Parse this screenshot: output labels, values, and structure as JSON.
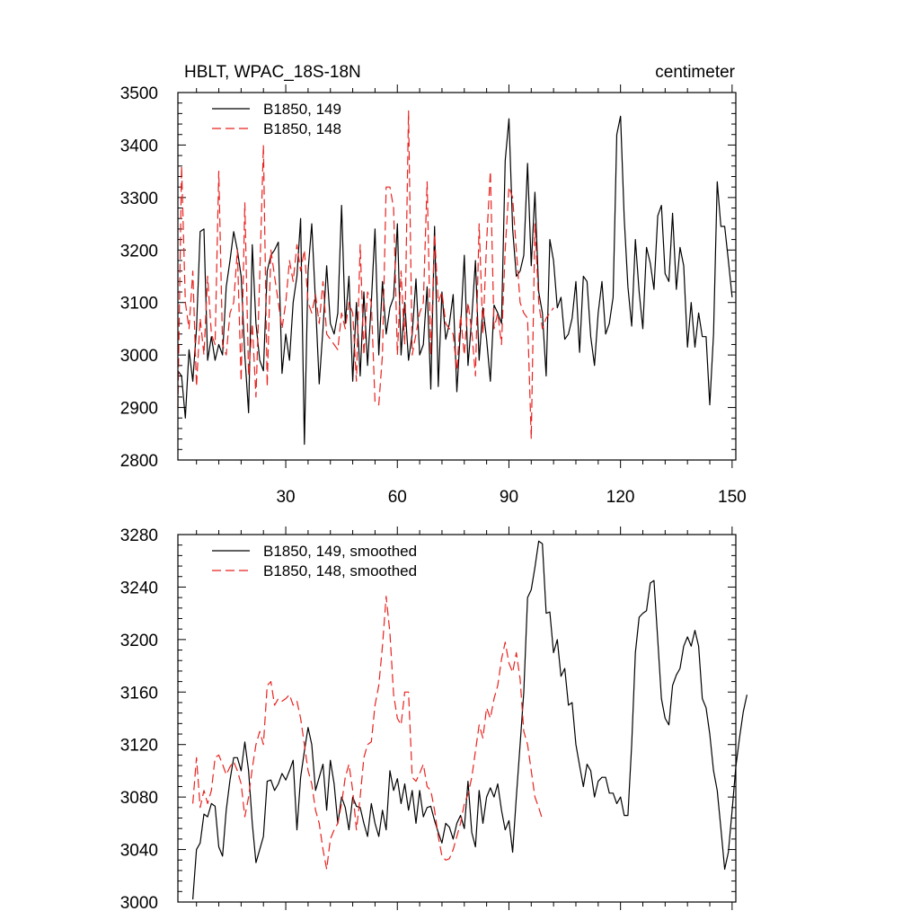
{
  "chart_data": [
    {
      "type": "line",
      "title": "HBLT, WPAC_18S-18N",
      "units": "centimeter",
      "xlabel": "",
      "ylabel": "",
      "xlim": [
        1,
        151
      ],
      "ylim": [
        2800,
        3500
      ],
      "xticks": [
        30,
        60,
        90,
        120,
        150
      ],
      "yticks": [
        2800,
        2900,
        3000,
        3100,
        3200,
        3300,
        3400,
        3500
      ],
      "legend_position": "top-left",
      "series": [
        {
          "name": "B1850, 149",
          "color": "#000000",
          "dash": "solid",
          "x_start": 1,
          "values": [
            2970,
            2960,
            2880,
            3010,
            2950,
            3050,
            3235,
            3240,
            2990,
            3035,
            2990,
            3020,
            3000,
            3130,
            3180,
            3235,
            3200,
            3150,
            3000,
            2890,
            3210,
            3060,
            2990,
            2970,
            3160,
            3190,
            3200,
            3215,
            2965,
            3040,
            2990,
            3100,
            3150,
            3260,
            2830,
            3160,
            3250,
            3100,
            2945,
            3050,
            3170,
            3060,
            3040,
            3080,
            3285,
            3060,
            3150,
            2950,
            3100,
            2960,
            3120,
            2980,
            3100,
            3240,
            3000,
            3140,
            3040,
            3090,
            3110,
            3250,
            3000,
            3100,
            2990,
            3040,
            3145,
            3000,
            3020,
            3130,
            2935,
            3245,
            2940,
            3120,
            3030,
            3060,
            3115,
            2930,
            3050,
            3190,
            2980,
            3070,
            3180,
            2990,
            3090,
            3030,
            2950,
            3095,
            3080,
            3060,
            3370,
            3450,
            3240,
            3150,
            3160,
            3190,
            3365,
            3170,
            3310,
            3120,
            3080,
            2960,
            3220,
            3180,
            3090,
            3110,
            3030,
            3040,
            3070,
            3140,
            3005,
            3150,
            3140,
            3035,
            2980,
            3080,
            3140,
            3040,
            3060,
            3110,
            3420,
            3455,
            3260,
            3130,
            3055,
            3220,
            3120,
            3050,
            3205,
            3175,
            3125,
            3265,
            3285,
            3155,
            3140,
            3270,
            3125,
            3205,
            3170,
            3015,
            3100,
            3015,
            3080,
            3035,
            3035,
            2905,
            3040,
            3330,
            3245,
            3245,
            3180,
            3110
          ]
        },
        {
          "name": "B1850, 148",
          "color": "#e8221e",
          "dash": "dashed",
          "x_start": 1,
          "values": [
            2900,
            3360,
            3100,
            3050,
            3160,
            2940,
            3070,
            3000,
            3150,
            3040,
            3020,
            3350,
            3020,
            3000,
            3080,
            3100,
            3200,
            2950,
            3290,
            2960,
            3060,
            2920,
            3150,
            3400,
            2940,
            3200,
            3150,
            3100,
            3050,
            3100,
            3180,
            3140,
            3210,
            3160,
            3200,
            3100,
            3080,
            3115,
            3060,
            3140,
            3040,
            3030,
            3020,
            3010,
            3080,
            3050,
            3100,
            3080,
            2950,
            3210,
            3000,
            3120,
            3100,
            2910,
            2905,
            3000,
            3320,
            3320,
            3280,
            3000,
            3160,
            3020,
            3465,
            3000,
            3040,
            3080,
            3100,
            3330,
            3000,
            3230,
            3100,
            3120,
            3060,
            3050,
            3040,
            2970,
            3075,
            3000,
            3100,
            3045,
            2960,
            3250,
            3040,
            3215,
            3350,
            3050,
            3080,
            3020,
            3200,
            3320,
            3300,
            3200,
            3100,
            3080,
            3070,
            2840,
            3250,
            3100,
            3050,
            3070,
            3080,
            3090
          ]
        }
      ]
    },
    {
      "type": "line",
      "title": "",
      "xlabel": "",
      "ylabel": "",
      "xlim": [
        1,
        151
      ],
      "ylim": [
        3000,
        3280
      ],
      "xticks": [
        30,
        60,
        90,
        120,
        150
      ],
      "yticks": [
        3000,
        3040,
        3080,
        3120,
        3160,
        3200,
        3240,
        3280
      ],
      "legend_position": "top-left",
      "series": [
        {
          "name": "B1850, 149, smoothed",
          "color": "#000000",
          "dash": "solid",
          "x_start": 5,
          "values": [
            3002,
            3040,
            3045,
            3067,
            3065,
            3075,
            3073,
            3042,
            3035,
            3070,
            3093,
            3110,
            3110,
            3100,
            3122,
            3100,
            3060,
            3030,
            3040,
            3050,
            3092,
            3093,
            3085,
            3090,
            3098,
            3093,
            3100,
            3108,
            3055,
            3095,
            3115,
            3133,
            3120,
            3085,
            3095,
            3105,
            3070,
            3108,
            3090,
            3060,
            3080,
            3072,
            3055,
            3080,
            3073,
            3072,
            3060,
            3050,
            3075,
            3060,
            3050,
            3070,
            3055,
            3100,
            3085,
            3094,
            3075,
            3090,
            3070,
            3085,
            3060,
            3085,
            3065,
            3072,
            3073,
            3062,
            3053,
            3045,
            3060,
            3057,
            3048,
            3060,
            3066,
            3056,
            3092,
            3053,
            3042,
            3085,
            3060,
            3080,
            3087,
            3080,
            3090,
            3070,
            3055,
            3062,
            3038,
            3080,
            3120,
            3160,
            3232,
            3238,
            3255,
            3275,
            3273,
            3220,
            3221,
            3190,
            3200,
            3172,
            3178,
            3150,
            3152,
            3120,
            3104,
            3088,
            3105,
            3100,
            3080,
            3092,
            3095,
            3095,
            3083,
            3083,
            3075,
            3080,
            3066,
            3066,
            3120,
            3190,
            3217,
            3220,
            3222,
            3243,
            3245,
            3200,
            3155,
            3140,
            3135,
            3165,
            3173,
            3178,
            3195,
            3202,
            3195,
            3207,
            3195,
            3155,
            3148,
            3128,
            3100,
            3085,
            3056,
            3025,
            3038,
            3070,
            3103,
            3125,
            3145,
            3158
          ]
        },
        {
          "name": "B1850, 148, smoothed",
          "color": "#e8221e",
          "dash": "dashed",
          "x_start": 5,
          "values": [
            3075,
            3110,
            3072,
            3085,
            3075,
            3085,
            3110,
            3112,
            3105,
            3097,
            3103,
            3107,
            3100,
            3090,
            3065,
            3080,
            3102,
            3120,
            3130,
            3120,
            3165,
            3168,
            3150,
            3155,
            3153,
            3155,
            3158,
            3150,
            3153,
            3140,
            3120,
            3100,
            3090,
            3070,
            3060,
            3040,
            3025,
            3048,
            3055,
            3060,
            3075,
            3095,
            3105,
            3085,
            3055,
            3080,
            3110,
            3120,
            3122,
            3150,
            3165,
            3195,
            3233,
            3205,
            3158,
            3140,
            3135,
            3160,
            3160,
            3095,
            3092,
            3098,
            3105,
            3088,
            3085,
            3070,
            3050,
            3035,
            3032,
            3033,
            3040,
            3050,
            3060,
            3075,
            3082,
            3095,
            3115,
            3135,
            3125,
            3148,
            3140,
            3155,
            3165,
            3185,
            3198,
            3182,
            3175,
            3190,
            3170,
            3130,
            3120,
            3100,
            3080,
            3072,
            3063
          ]
        }
      ]
    }
  ]
}
